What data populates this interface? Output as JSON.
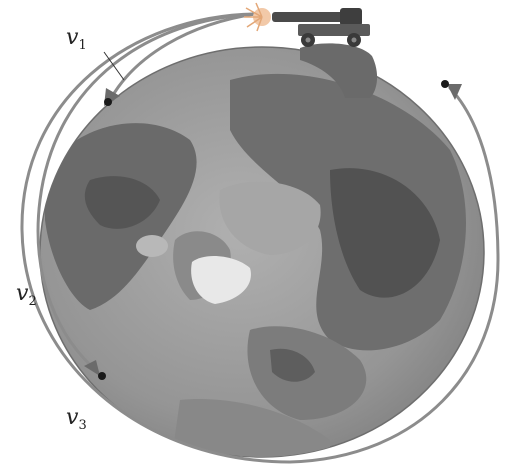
{
  "diagram": {
    "labels": {
      "v1": {
        "symbol": "v",
        "sub": "1"
      },
      "v2": {
        "symbol": "v",
        "sub": "2"
      },
      "v3": {
        "symbol": "v",
        "sub": "3"
      }
    },
    "colors": {
      "trajectory": "#8c8c8c",
      "arrowhead": "#6b6b6b",
      "landing_dot": "#1a1a1a",
      "ocean": "#9a9a9a",
      "land_dark": "#5c5c5c",
      "land_mid": "#7a7a7a",
      "ice": "#e6e6e6",
      "cannon": "#4a4a4a",
      "muzzle_flash": "#f2c9a8"
    },
    "icons": [
      "cannon-icon",
      "muzzle-flash-icon",
      "globe-icon"
    ]
  }
}
